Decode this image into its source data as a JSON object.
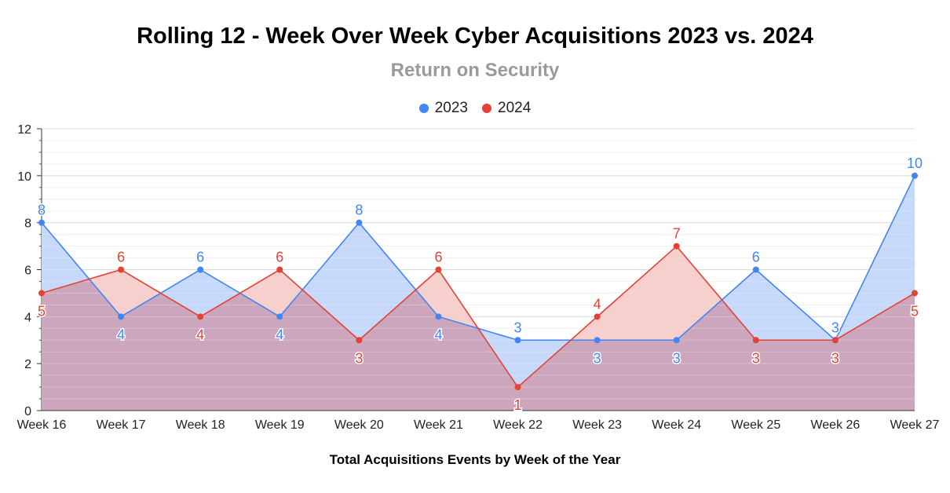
{
  "chart_data": {
    "type": "area",
    "title": "Rolling 12 - Week Over Week Cyber Acquisitions 2023 vs. 2024",
    "subtitle": "Return on Security",
    "xlabel": "Total Acquisitions Events by Week of the Year",
    "ylabel": "",
    "categories": [
      "Week 16",
      "Week 17",
      "Week 18",
      "Week 19",
      "Week 20",
      "Week 21",
      "Week 22",
      "Week 23",
      "Week 24",
      "Week 25",
      "Week 26",
      "Week 27"
    ],
    "series": [
      {
        "name": "2023",
        "color": "#4285f4",
        "fill": "#c6d9fb",
        "values": [
          8,
          4,
          6,
          4,
          8,
          4,
          3,
          3,
          3,
          6,
          3,
          10
        ]
      },
      {
        "name": "2024",
        "color": "#e34234",
        "fill": "#f4bdb8",
        "values": [
          5,
          6,
          4,
          6,
          3,
          6,
          1,
          4,
          7,
          3,
          3,
          5
        ]
      }
    ],
    "ylim": [
      0,
      12
    ],
    "yticks": [
      0,
      2,
      4,
      6,
      8,
      10,
      12
    ],
    "legend_position": "top-center",
    "grid": true,
    "data_labels": true,
    "overlap_color": "#cba6bd"
  }
}
